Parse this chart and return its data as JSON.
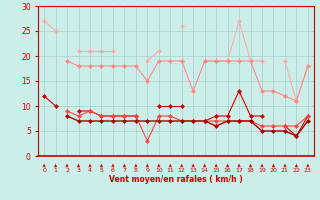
{
  "x": [
    0,
    1,
    2,
    3,
    4,
    5,
    6,
    7,
    8,
    9,
    10,
    11,
    12,
    13,
    14,
    15,
    16,
    17,
    18,
    19,
    20,
    21,
    22,
    23
  ],
  "series": [
    {
      "name": "rafales_max",
      "color": "#ffaaaa",
      "linewidth": 0.8,
      "markersize": 2.5,
      "values": [
        27,
        25,
        null,
        21,
        21,
        21,
        21,
        null,
        null,
        19,
        21,
        null,
        26,
        null,
        19,
        19,
        19,
        27,
        19,
        19,
        null,
        19,
        11,
        18
      ]
    },
    {
      "name": "rafales_avg",
      "color": "#ff8888",
      "linewidth": 0.8,
      "markersize": 2.5,
      "values": [
        null,
        null,
        19,
        18,
        18,
        18,
        18,
        18,
        18,
        15,
        19,
        19,
        19,
        13,
        19,
        19,
        19,
        19,
        19,
        13,
        13,
        12,
        11,
        18
      ]
    },
    {
      "name": "vent_max",
      "color": "#cc0000",
      "linewidth": 0.8,
      "markersize": 2.5,
      "values": [
        12,
        10,
        null,
        9,
        9,
        8,
        8,
        8,
        8,
        null,
        10,
        10,
        10,
        null,
        7,
        8,
        8,
        13,
        8,
        8,
        null,
        6,
        4,
        8
      ]
    },
    {
      "name": "vent_avg",
      "color": "#ff4444",
      "linewidth": 0.8,
      "markersize": 2.5,
      "values": [
        null,
        null,
        9,
        8,
        9,
        8,
        8,
        8,
        8,
        3,
        8,
        8,
        7,
        7,
        7,
        7,
        7,
        7,
        7,
        6,
        6,
        6,
        6,
        8
      ]
    },
    {
      "name": "vent_min",
      "color": "#aa0000",
      "linewidth": 1.0,
      "markersize": 2.5,
      "values": [
        null,
        null,
        8,
        7,
        7,
        7,
        7,
        7,
        7,
        7,
        7,
        7,
        7,
        7,
        7,
        6,
        7,
        7,
        7,
        5,
        5,
        5,
        4,
        7
      ]
    }
  ],
  "xlim": [
    -0.5,
    23.5
  ],
  "ylim": [
    0,
    30
  ],
  "yticks": [
    0,
    5,
    10,
    15,
    20,
    25,
    30
  ],
  "xticks": [
    0,
    1,
    2,
    3,
    4,
    5,
    6,
    7,
    8,
    9,
    10,
    11,
    12,
    13,
    14,
    15,
    16,
    17,
    18,
    19,
    20,
    21,
    22,
    23
  ],
  "xlabel": "Vent moyen/en rafales ( km/h )",
  "background_color": "#cceee8",
  "grid_color": "#aacccc",
  "axis_color": "#cc0000",
  "label_color": "#cc0000",
  "arrow_color": "#cc0000"
}
